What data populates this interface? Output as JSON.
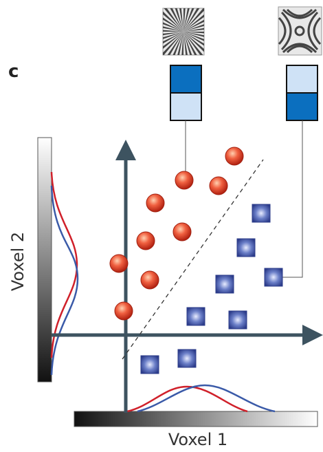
{
  "panel_label": "c",
  "x_axis_label": "Voxel 1",
  "y_axis_label": "Voxel 2"
}
